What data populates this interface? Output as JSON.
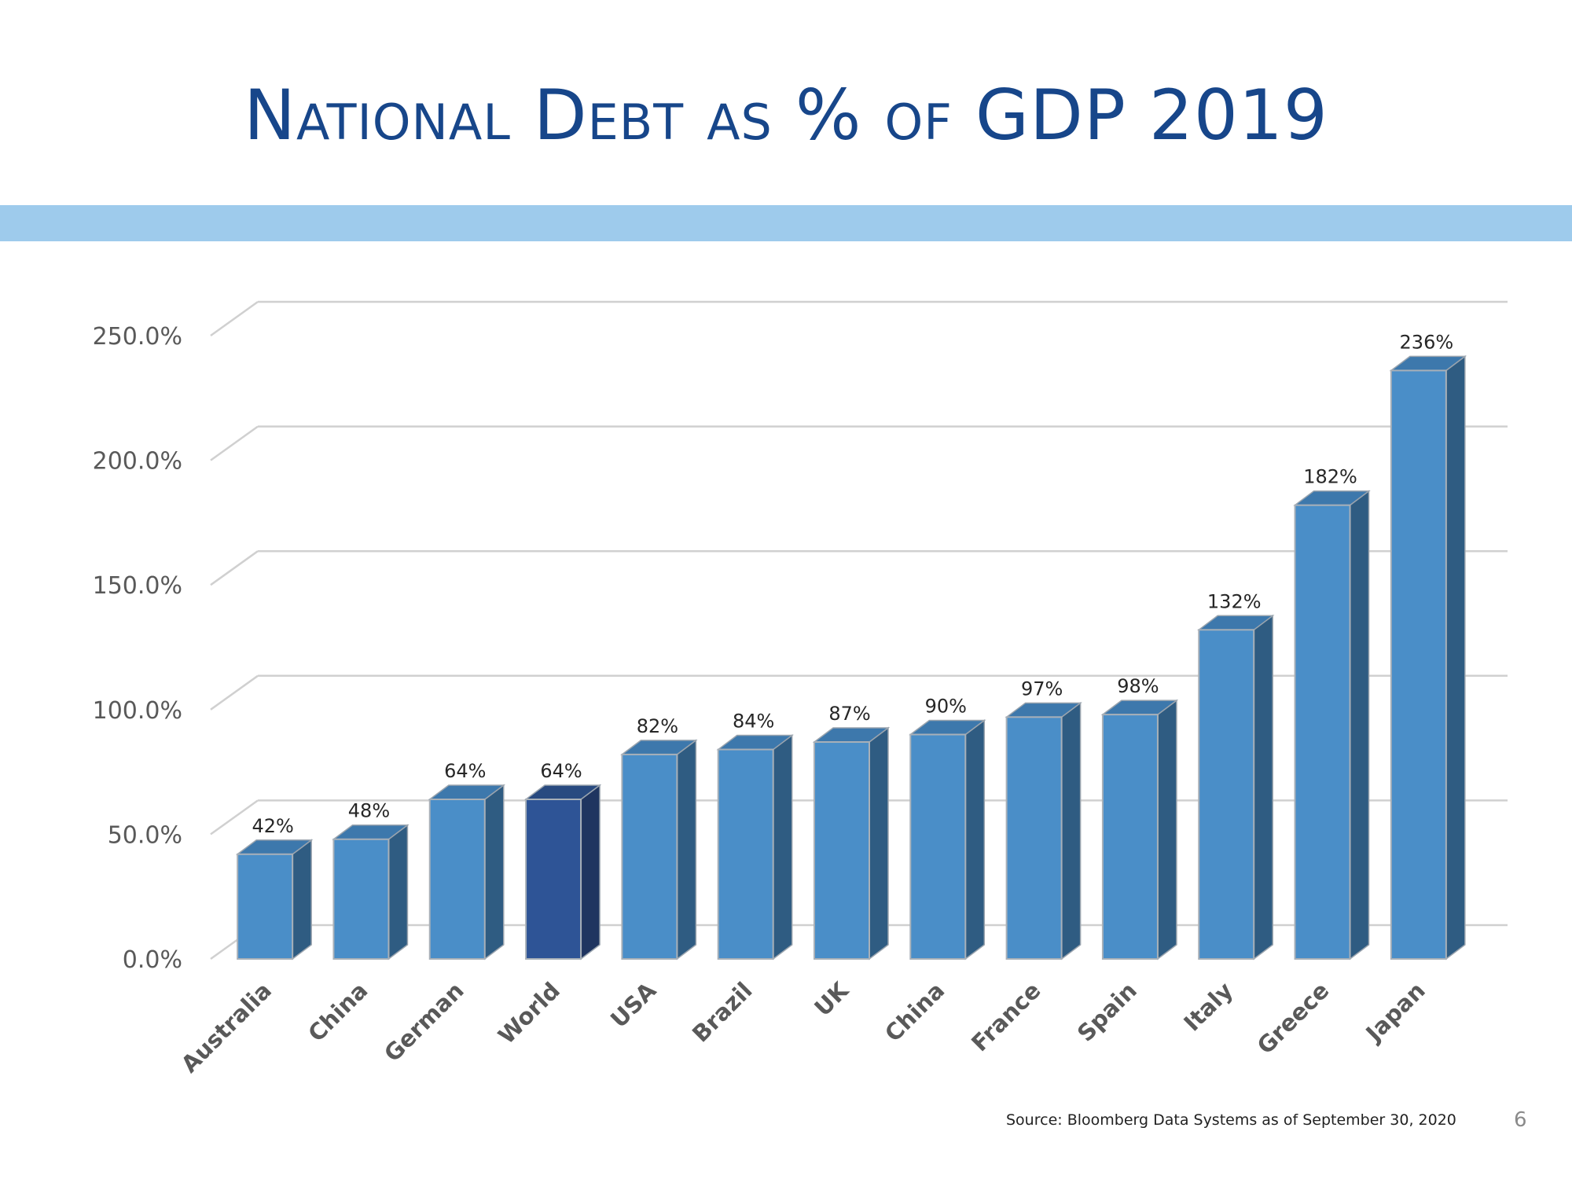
{
  "slide": {
    "title": "National Debt as % of GDP 2019",
    "source": "Source: Bloomberg Data Systems as of September 30, 2020",
    "page_number": "6"
  },
  "colors": {
    "bar_front": "#4a8ec8",
    "bar_side": "#2f5c82",
    "bar_top": "#3d78ac",
    "highlight_front": "#2e5496",
    "highlight_side": "#1f3560",
    "highlight_top": "#284a80",
    "band": "#9ecbec",
    "title": "#17468a"
  },
  "chart_data": {
    "type": "bar",
    "style": "3d-column",
    "title": "National Debt as % of GDP 2019",
    "categories": [
      "Australia",
      "China",
      "German",
      "World",
      "USA",
      "Brazil",
      "UK",
      "China",
      "France",
      "Spain",
      "Italy",
      "Greece",
      "Japan"
    ],
    "values": [
      42,
      48,
      64,
      64,
      82,
      84,
      87,
      90,
      97,
      98,
      132,
      182,
      236
    ],
    "data_labels": [
      "42%",
      "48%",
      "64%",
      "64%",
      "82%",
      "84%",
      "87%",
      "90%",
      "97%",
      "98%",
      "132%",
      "182%",
      "236%"
    ],
    "highlight_category": "World",
    "ylim": [
      0,
      250
    ],
    "yticks": [
      0,
      50,
      100,
      150,
      200,
      250
    ],
    "ytick_labels": [
      "0.0%",
      "50.0%",
      "100.0%",
      "150.0%",
      "200.0%",
      "250.0%"
    ],
    "xlabel": "",
    "ylabel": "",
    "grid": true,
    "legend": "none"
  }
}
